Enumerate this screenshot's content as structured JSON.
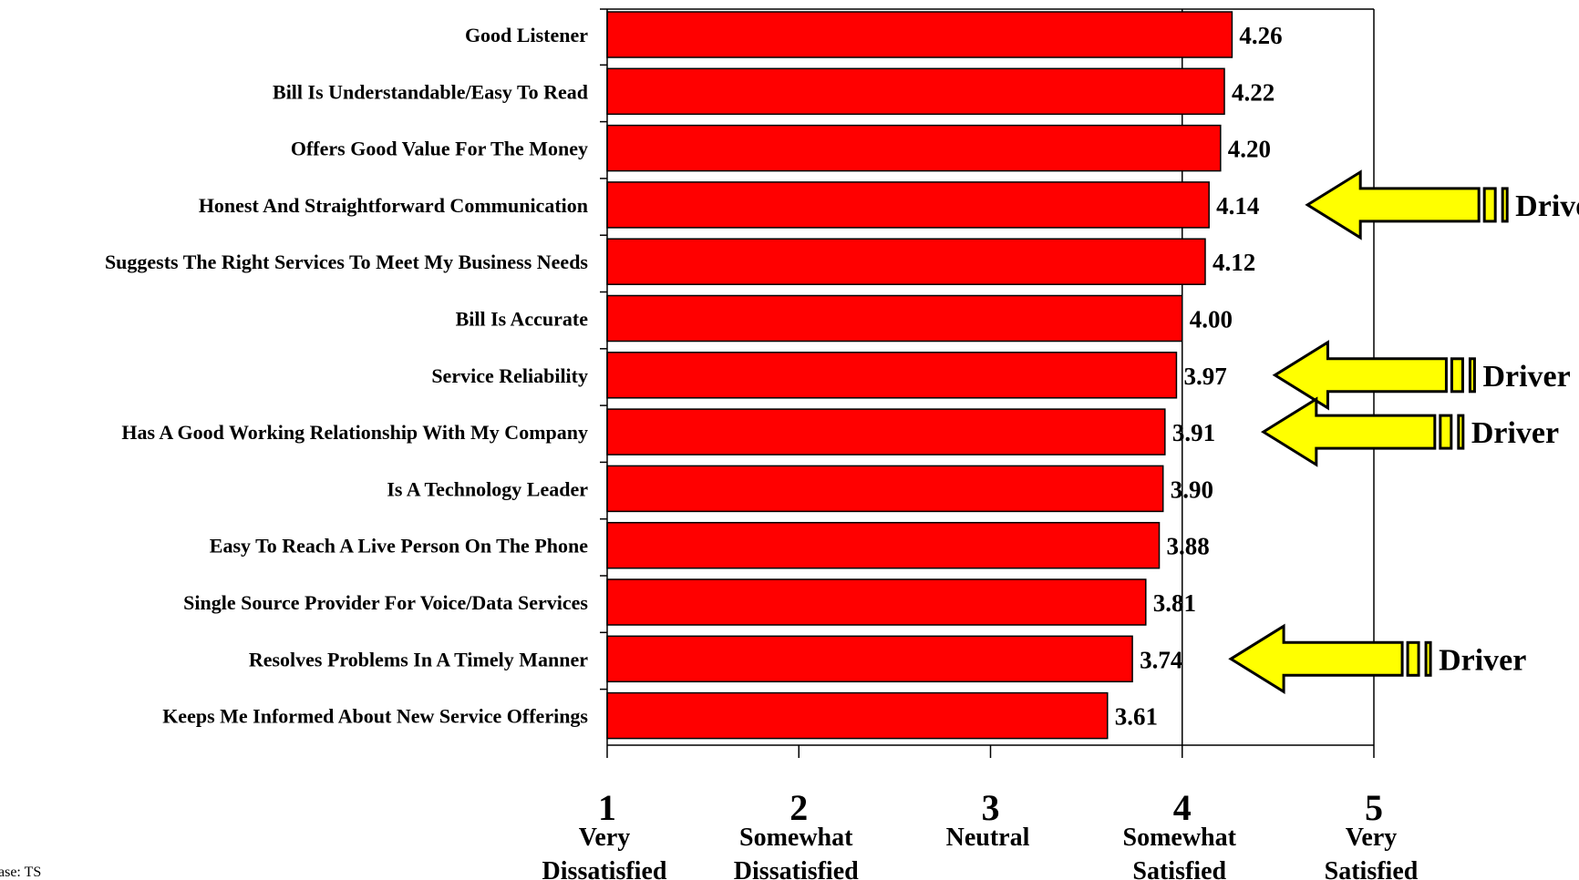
{
  "chart_data": {
    "type": "bar",
    "orientation": "horizontal",
    "categories": [
      "Good Listener",
      "Bill Is Understandable/Easy To Read",
      "Offers Good Value For The Money",
      "Honest And Straightforward Communication",
      "Suggests The Right Services To Meet My Business Needs",
      "Bill Is Accurate",
      "Service Reliability",
      "Has A Good Working Relationship With My Company",
      "Is A Technology Leader",
      "Easy To Reach A Live Person On The Phone",
      "Single Source Provider For Voice/Data Services",
      "Resolves Problems In A Timely Manner",
      "Keeps Me Informed About New Service Offerings"
    ],
    "values": [
      4.26,
      4.22,
      4.2,
      4.14,
      4.12,
      4.0,
      3.97,
      3.91,
      3.9,
      3.88,
      3.81,
      3.74,
      3.61
    ],
    "value_labels": [
      "4.26",
      "4.22",
      "4.20",
      "4.14",
      "4.12",
      "4.00",
      "3.97",
      "3.91",
      "3.90",
      "3.88",
      "3.81",
      "3.74",
      "3.61"
    ],
    "xlim": [
      1,
      5
    ],
    "x_ticks": [
      {
        "value": 1,
        "number": "1",
        "line1": "Very",
        "line2": "Dissatisfied"
      },
      {
        "value": 2,
        "number": "2",
        "line1": "Somewhat",
        "line2": "Dissatisfied"
      },
      {
        "value": 3,
        "number": "3",
        "line1": "Neutral",
        "line2": ""
      },
      {
        "value": 4,
        "number": "4",
        "line1": "Somewhat",
        "line2": "Satisfied"
      },
      {
        "value": 5,
        "number": "5",
        "line1": "Very",
        "line2": "Satisfied"
      }
    ],
    "reference_line": 4,
    "bar_color": "#FF0000",
    "annotations": [
      {
        "category_index": 3,
        "text": "Driver"
      },
      {
        "category_index": 6,
        "text": "Driver"
      },
      {
        "category_index": 7,
        "text": "Driver"
      },
      {
        "category_index": 11,
        "text": "Driver"
      }
    ],
    "arrow_color": "#FFFF00",
    "footnote": "ase: TS"
  }
}
